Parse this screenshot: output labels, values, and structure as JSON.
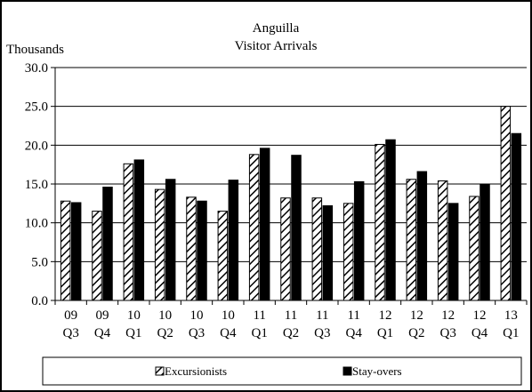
{
  "chart_data": {
    "type": "bar",
    "title_lines": [
      "Anguilla",
      "Visitor Arrivals"
    ],
    "unit_label": "Thousands",
    "categories": [
      [
        "09",
        "Q3"
      ],
      [
        "09",
        "Q4"
      ],
      [
        "10",
        "Q1"
      ],
      [
        "10",
        "Q2"
      ],
      [
        "10",
        "Q3"
      ],
      [
        "10",
        "Q4"
      ],
      [
        "11",
        "Q1"
      ],
      [
        "11",
        "Q2"
      ],
      [
        "11",
        "Q3"
      ],
      [
        "11",
        "Q4"
      ],
      [
        "12",
        "Q1"
      ],
      [
        "12",
        "Q2"
      ],
      [
        "12",
        "Q3"
      ],
      [
        "12",
        "Q4"
      ],
      [
        "13",
        "Q1"
      ]
    ],
    "series": [
      {
        "name": "Excursionists",
        "pattern": "hatched",
        "values": [
          12.8,
          11.5,
          17.6,
          14.3,
          13.3,
          11.5,
          18.8,
          13.2,
          13.2,
          12.5,
          20.1,
          15.6,
          15.4,
          13.4,
          25.0
        ]
      },
      {
        "name": "Stay-overs",
        "pattern": "solid",
        "values": [
          12.6,
          14.6,
          18.1,
          15.6,
          12.8,
          15.5,
          19.6,
          18.7,
          12.2,
          15.3,
          20.7,
          16.6,
          12.5,
          15.0,
          21.5
        ]
      }
    ],
    "yticks": [
      "0.0",
      "5.0",
      "10.0",
      "15.0",
      "20.0",
      "25.0",
      "30.0"
    ],
    "ylim": [
      0,
      30
    ],
    "grid": true,
    "legend_position": "bottom",
    "colors": {
      "bar_stroke": "#000000",
      "solid_fill": "#000000",
      "hatch_fill": "#ffffff",
      "grid": "#000000"
    }
  }
}
